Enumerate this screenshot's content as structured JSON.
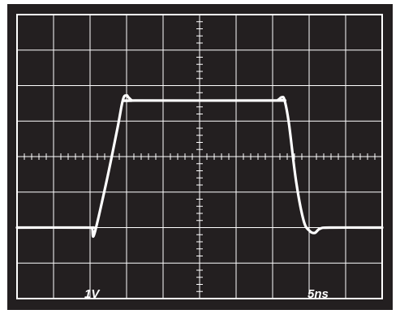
{
  "chart_data": {
    "type": "line",
    "title": "",
    "xlabel": "",
    "ylabel": "",
    "grid": true,
    "scale_labels": {
      "vertical": "1V",
      "horizontal": "5ns"
    },
    "x_divisions": 10,
    "y_divisions": 8,
    "x_range_div": [
      0,
      10
    ],
    "y_range_div": [
      -4,
      4
    ],
    "series": [
      {
        "x": [
          0,
          1.9,
          2.05,
          2.12,
          2.45,
          2.75,
          2.9,
          3.0,
          3.05,
          3.15,
          3.25,
          7.0,
          7.15,
          7.25,
          7.33,
          7.45,
          7.65,
          7.85,
          8.0,
          8.15,
          8.3,
          8.6,
          10
        ],
        "y": [
          -2.0,
          -2.0,
          -2.02,
          -2.17,
          -0.7,
          0.8,
          1.6,
          1.72,
          1.67,
          1.58,
          1.58,
          1.58,
          1.6,
          1.67,
          1.58,
          0.9,
          -0.75,
          -1.8,
          -2.08,
          -2.15,
          -2.03,
          -2.0,
          -2.0
        ]
      }
    ],
    "colors": {
      "background": "#231f20",
      "grid": "#ffffff",
      "trace": "#ffffff",
      "frame": "#ffffff"
    }
  }
}
